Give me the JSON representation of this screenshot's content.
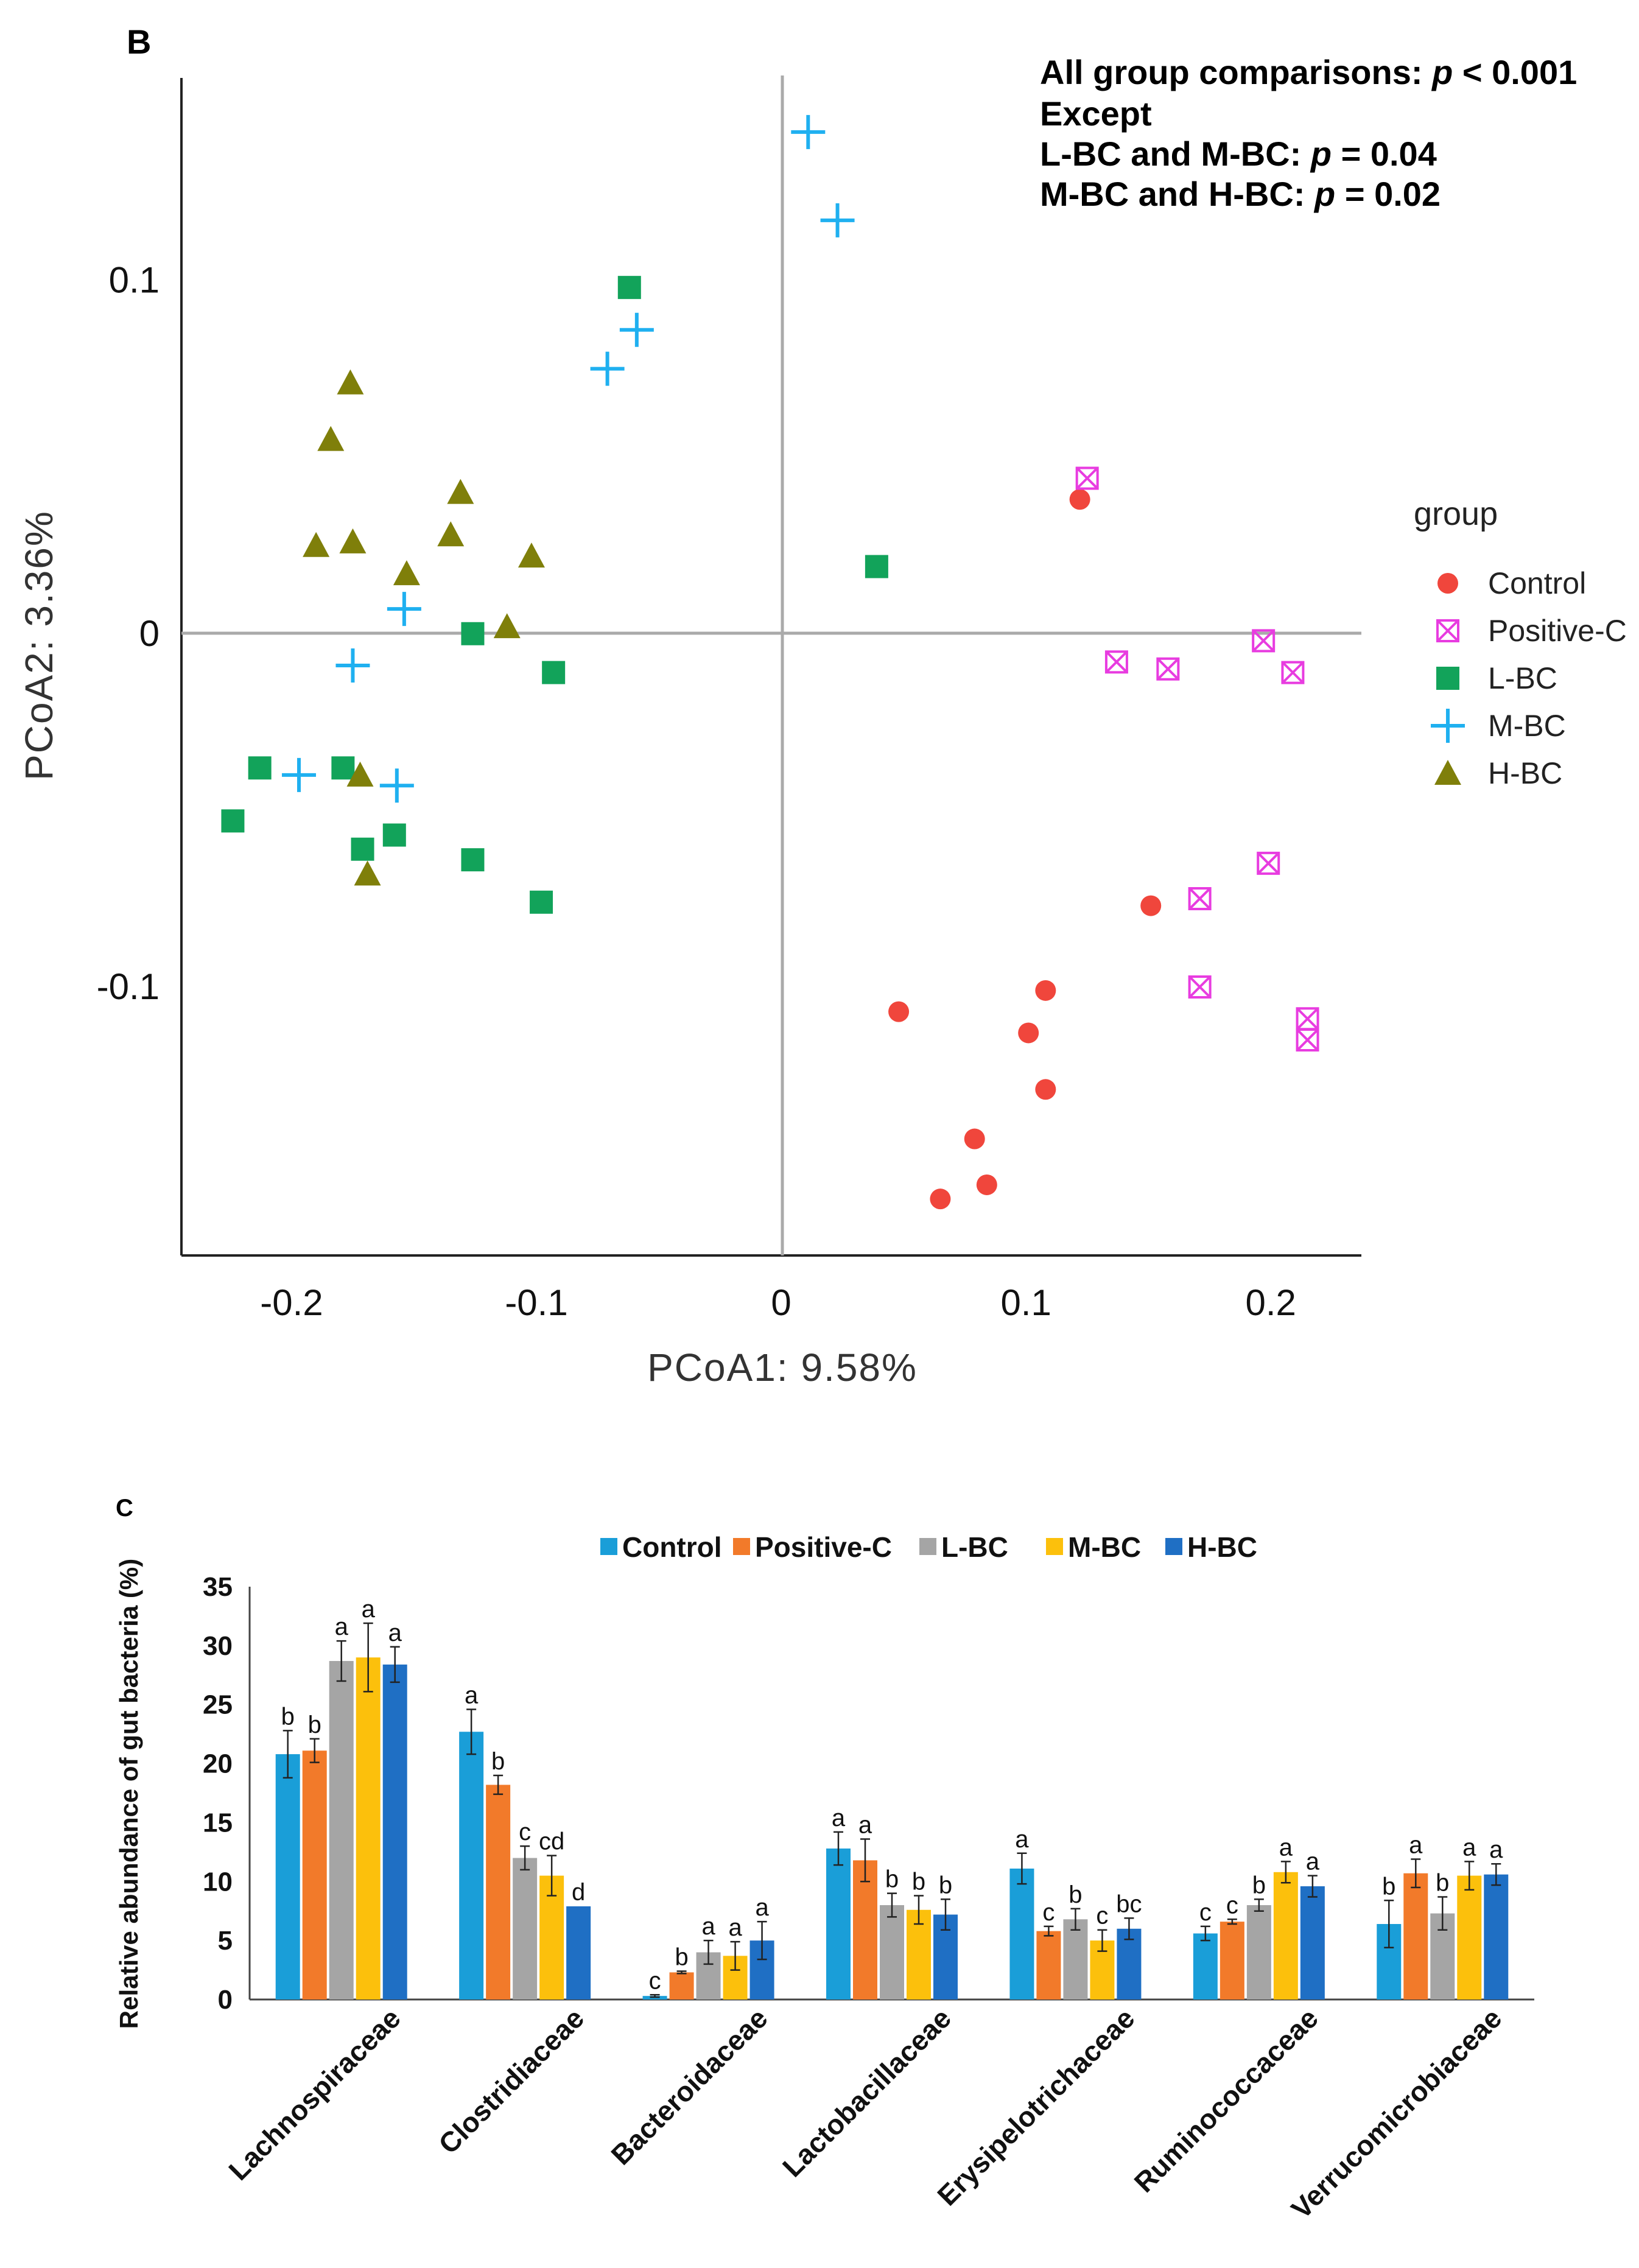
{
  "panel_b": {
    "letter": "B",
    "stats": [
      "All group comparisons: ",
      "p",
      " < 0.001",
      "Except",
      "L-BC and M-BC: ",
      "p",
      " = 0.04",
      "M-BC and H-BC: ",
      "p",
      " = 0.02"
    ]
  },
  "panel_c": {
    "letter": "C"
  },
  "colors": {
    "control_a": "#f0463c",
    "positive_a": "#e83ce0",
    "lbc_a": "#12a35a",
    "mbc_a": "#1fb0f0",
    "hbc_a": "#7f7f0a",
    "control_b": "#1a9ed8",
    "positive_b": "#f27a2a",
    "lbc_b": "#a5a5a5",
    "mbc_b": "#fcc00c",
    "hbc_b": "#1f6fc4"
  },
  "chart_data": [
    {
      "type": "scatter",
      "title": "",
      "xlabel": "PCoA1:  9.58%",
      "ylabel": "PCoA2: 3.36%",
      "xlim": [
        -0.245,
        0.237
      ],
      "ylim": [
        -0.176,
        0.158
      ],
      "x_ticks": [
        -0.2,
        -0.1,
        0,
        0.1,
        0.2
      ],
      "x_tick_labels": [
        "-0.2",
        "-0.1",
        "0",
        "0.1",
        "0.2"
      ],
      "y_ticks": [
        0.1,
        0,
        -0.1
      ],
      "y_tick_labels": [
        "0.1",
        "0",
        "-0.1"
      ],
      "legend_title": "group",
      "legend_position": "right",
      "series": [
        {
          "name": "Control",
          "marker": "circle",
          "points": [
            [
              0.122,
              0.038
            ],
            [
              0.151,
              -0.077
            ],
            [
              0.108,
              -0.101
            ],
            [
              0.101,
              -0.113
            ],
            [
              0.108,
              -0.129
            ],
            [
              0.048,
              -0.107
            ],
            [
              0.079,
              -0.143
            ],
            [
              0.084,
              -0.156
            ],
            [
              0.065,
              -0.16
            ]
          ]
        },
        {
          "name": "Positive-C",
          "marker": "square-x",
          "points": [
            [
              0.125,
              0.044
            ],
            [
              0.137,
              -0.008
            ],
            [
              0.158,
              -0.01
            ],
            [
              0.197,
              -0.002
            ],
            [
              0.209,
              -0.011
            ],
            [
              0.199,
              -0.065
            ],
            [
              0.171,
              -0.075
            ],
            [
              0.171,
              -0.1
            ],
            [
              0.215,
              -0.109
            ],
            [
              0.215,
              -0.115
            ]
          ]
        },
        {
          "name": "L-BC",
          "marker": "square",
          "points": [
            [
              -0.062,
              0.098
            ],
            [
              0.039,
              0.019
            ],
            [
              -0.126,
              0.0
            ],
            [
              -0.093,
              -0.011
            ],
            [
              -0.213,
              -0.038
            ],
            [
              -0.179,
              -0.038
            ],
            [
              -0.224,
              -0.053
            ],
            [
              -0.158,
              -0.057
            ],
            [
              -0.171,
              -0.061
            ],
            [
              -0.126,
              -0.064
            ],
            [
              -0.098,
              -0.076
            ]
          ]
        },
        {
          "name": "M-BC",
          "marker": "plus",
          "points": [
            [
              0.011,
              0.142
            ],
            [
              0.023,
              0.117
            ],
            [
              -0.059,
              0.086
            ],
            [
              -0.071,
              0.075
            ],
            [
              -0.154,
              0.007
            ],
            [
              -0.175,
              -0.009
            ],
            [
              -0.197,
              -0.04
            ],
            [
              -0.157,
              -0.043
            ]
          ]
        },
        {
          "name": "H-BC",
          "marker": "triangle",
          "points": [
            [
              -0.176,
              0.071
            ],
            [
              -0.184,
              0.055
            ],
            [
              -0.131,
              0.04
            ],
            [
              -0.19,
              0.025
            ],
            [
              -0.175,
              0.026
            ],
            [
              -0.135,
              0.028
            ],
            [
              -0.102,
              0.022
            ],
            [
              -0.153,
              0.017
            ],
            [
              -0.112,
              0.002
            ],
            [
              -0.172,
              -0.04
            ],
            [
              -0.169,
              -0.068
            ]
          ]
        }
      ]
    },
    {
      "type": "bar",
      "title": "",
      "xlabel": "",
      "ylabel": "Relative abundance of gut bacteria (%)",
      "ylim": [
        0,
        35
      ],
      "y_ticks": [
        0,
        5,
        10,
        15,
        20,
        25,
        30,
        35
      ],
      "y_tick_labels": [
        "0",
        "5",
        "10",
        "15",
        "20",
        "25",
        "30",
        "35"
      ],
      "legend_position": "top",
      "categories": [
        "Lachnospiraceae",
        "Clostridiaceae",
        "Bacteroidaceae",
        "Lactobacillaceae",
        "Erysipelotrichaceae",
        "Ruminococcaceae",
        "Verrucomicrobiaceae"
      ],
      "series": [
        {
          "name": "Control",
          "values": [
            20.8,
            22.7,
            0.3,
            12.8,
            11.1,
            5.6,
            6.4
          ],
          "errors": [
            2.0,
            1.9,
            0.1,
            1.4,
            1.3,
            0.6,
            2.0
          ],
          "letters": [
            "b",
            "a",
            "c",
            "a",
            "a",
            "c",
            "b"
          ]
        },
        {
          "name": "Positive-C",
          "values": [
            21.1,
            18.2,
            2.3,
            11.8,
            5.8,
            6.6,
            10.7
          ],
          "errors": [
            1.0,
            0.8,
            0.1,
            1.8,
            0.4,
            0.2,
            1.2
          ],
          "letters": [
            "b",
            "b",
            "b",
            "a",
            "c",
            "c",
            "a"
          ]
        },
        {
          "name": "L-BC",
          "values": [
            28.7,
            12.0,
            4.0,
            8.0,
            6.8,
            8.0,
            7.3
          ],
          "errors": [
            1.7,
            1.0,
            1.0,
            1.0,
            0.9,
            0.5,
            1.4
          ],
          "letters": [
            "a",
            "c",
            "a",
            "b",
            "b",
            "b",
            "b"
          ]
        },
        {
          "name": "M-BC",
          "values": [
            29.0,
            10.5,
            3.7,
            7.6,
            5.0,
            10.8,
            10.5
          ],
          "errors": [
            2.9,
            1.7,
            1.2,
            1.2,
            0.9,
            0.9,
            1.2
          ],
          "letters": [
            "a",
            "cd",
            "a",
            "b",
            "c",
            "a",
            "a"
          ]
        },
        {
          "name": "H-BC",
          "values": [
            28.4,
            7.9,
            5.0,
            7.2,
            6.0,
            9.6,
            10.6
          ],
          "errors": [
            1.5,
            0.0,
            1.6,
            1.3,
            0.9,
            0.9,
            0.9
          ],
          "letters": [
            "a",
            "d",
            "a",
            "b",
            "bc",
            "a",
            "a"
          ]
        }
      ]
    }
  ]
}
